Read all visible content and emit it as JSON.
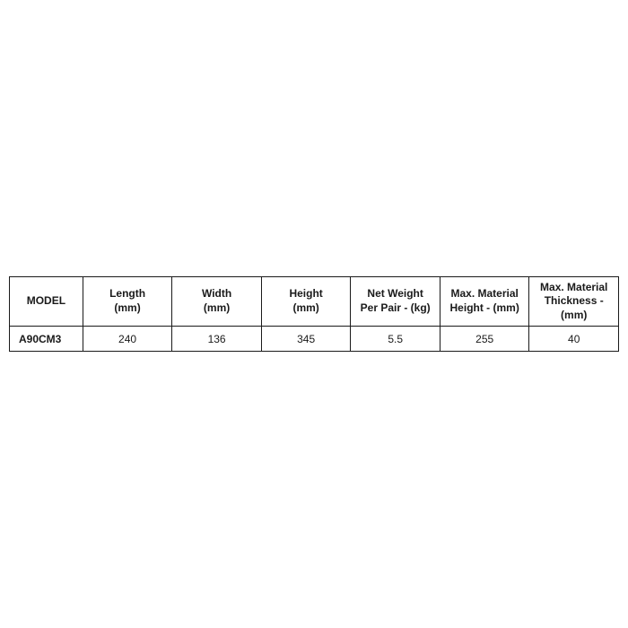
{
  "table": {
    "type": "table",
    "border_color": "#1a1a1a",
    "background_color": "#ffffff",
    "text_color": "#1a1a1a",
    "header_fontsize": 12,
    "cell_fontsize": 12,
    "border_width": 1.5,
    "columns": [
      {
        "label_line1": "MODEL",
        "label_line2": "",
        "width_pct": 12
      },
      {
        "label_line1": "Length",
        "label_line2": "(mm)",
        "width_pct": 14.6
      },
      {
        "label_line1": "Width",
        "label_line2": "(mm)",
        "width_pct": 14.6
      },
      {
        "label_line1": "Height",
        "label_line2": "(mm)",
        "width_pct": 14.6
      },
      {
        "label_line1": "Net Weight",
        "label_line2": "Per Pair - (kg)",
        "width_pct": 14.6
      },
      {
        "label_line1": "Max. Material",
        "label_line2": "Height - (mm)",
        "width_pct": 14.6
      },
      {
        "label_line1": "Max. Material",
        "label_line2": "Thickness - (mm)",
        "width_pct": 14.6
      }
    ],
    "rows": [
      {
        "model": "A90CM3",
        "length": "240",
        "width": "136",
        "height": "345",
        "net_weight": "5.5",
        "max_height": "255",
        "max_thickness": "40"
      }
    ]
  }
}
